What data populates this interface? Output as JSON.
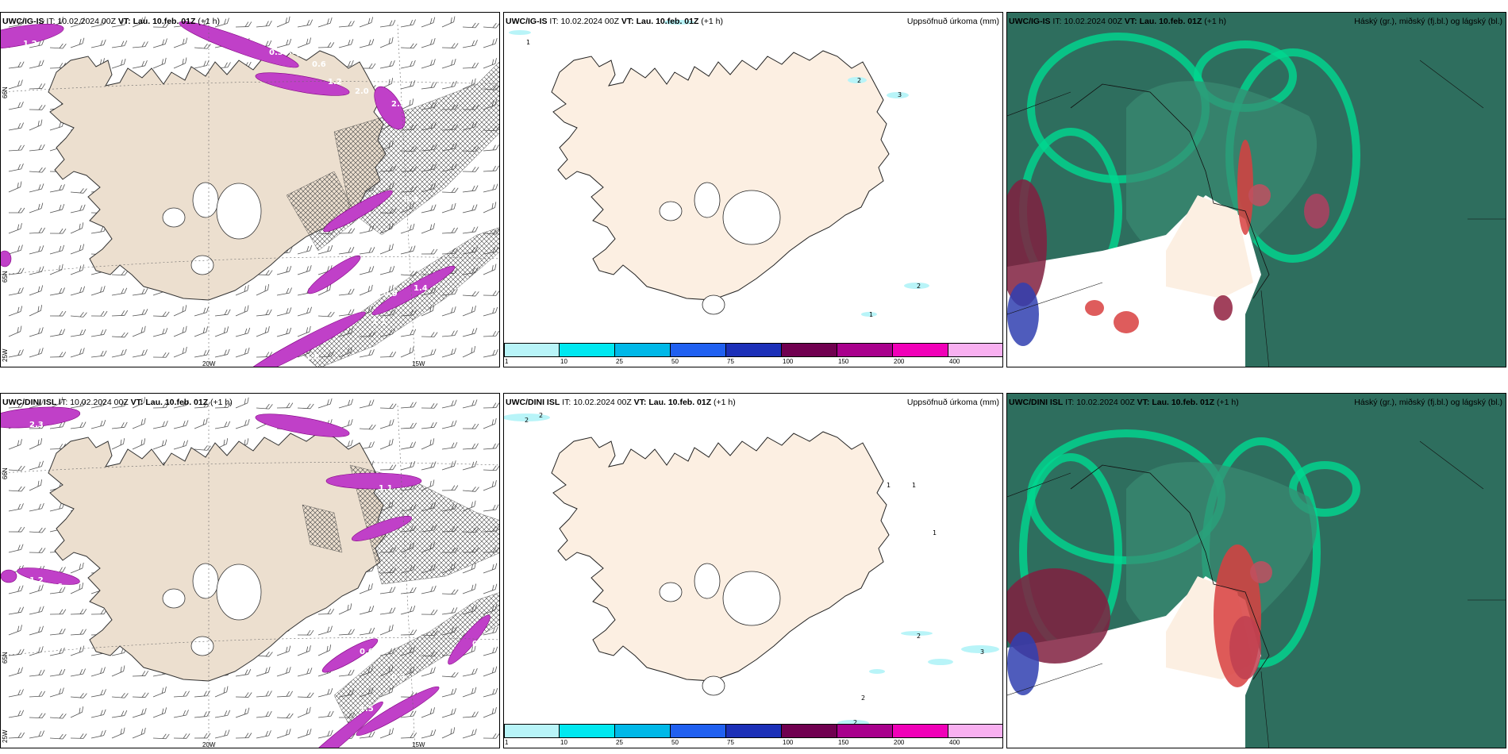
{
  "panels": [
    {
      "model": "UWC/IG-IS",
      "it_label": "IT:",
      "it_value": "10.02.2024 00Z",
      "vt_label": "VT:",
      "vt_value": "Lau. 10.feb. 01Z",
      "lead": "(+1 h)",
      "ticks": {
        "lat1": "65N",
        "lat2": "66N",
        "lon1": "25W",
        "lon2": "20W",
        "lon3": "15W"
      },
      "labels": [
        "1.2",
        "0.3",
        "0.3",
        "0.4",
        "0.6",
        "1.2",
        "2.0",
        "2.9",
        "0.4",
        "1.2",
        "0.9",
        "1.4",
        "1.1",
        "1.8"
      ]
    },
    {
      "model": "UWC/IG-IS",
      "it_label": "IT:",
      "it_value": "10.02.2024 00Z",
      "vt_label": "VT:",
      "vt_value": "Lau. 10.feb. 01Z",
      "lead": "(+1 h)",
      "right_title": "Uppsöfnuð úrkoma (mm)",
      "contour_labels": [
        "1",
        "2",
        "3",
        "2",
        "1"
      ]
    },
    {
      "model": "UWC/IG-IS",
      "it_label": "IT:",
      "it_value": "10.02.2024 00Z",
      "vt_label": "VT:",
      "vt_value": "Lau. 10.feb. 01Z",
      "lead": "(+1 h)",
      "right_title": "Háský (gr.), miðský (fj.bl.) og lágský (bl.)"
    },
    {
      "model": "UWC/DINI ISL",
      "it_label": "IT:",
      "it_value": "10.02.2024 00Z",
      "vt_label": "VT:",
      "vt_value": "Lau. 10.feb. 01Z",
      "lead": "(+1 h)",
      "ticks": {
        "lat1": "65N",
        "lat2": "66N",
        "lon1": "25W",
        "lon2": "20W",
        "lon3": "15W"
      },
      "labels": [
        "2.3",
        "0.3",
        "0.4",
        "1.1",
        "0.6",
        "0.6",
        "0.3",
        "1.5",
        "0.7",
        "1.2"
      ]
    },
    {
      "model": "UWC/DINI ISL",
      "it_label": "IT:",
      "it_value": "10.02.2024 00Z",
      "vt_label": "VT:",
      "vt_value": "Lau. 10.feb. 01Z",
      "lead": "(+1 h)",
      "right_title": "Uppsöfnuð úrkoma (mm)",
      "contour_labels": [
        "2",
        "2",
        "1",
        "1",
        "1",
        "2",
        "3",
        "2",
        "2"
      ]
    },
    {
      "model": "UWC/DINI ISL",
      "it_label": "IT:",
      "it_value": "10.02.2024 00Z",
      "vt_label": "VT:",
      "vt_value": "Lau. 10.feb. 01Z",
      "lead": "(+1 h)",
      "right_title": "Háský (gr.), miðský (fj.bl.) og lágský (bl.)"
    }
  ],
  "colorbar": {
    "levels": [
      "1",
      "10",
      "25",
      "50",
      "75",
      "100",
      "150",
      "200",
      "400"
    ],
    "colors": [
      "#b8f4f8",
      "#00e8f0",
      "#00b8e8",
      "#2060f0",
      "#1c30b8",
      "#700050",
      "#a8008c",
      "#f000b8",
      "#f8b0f0"
    ]
  },
  "colors": {
    "land": "#ecdfcf",
    "land_light": "#fcefe2",
    "precip": "#c040c8",
    "cloud_high": "#2e6e5e",
    "cloud_mid": "#00d890",
    "cloud_low": "#d84040"
  }
}
